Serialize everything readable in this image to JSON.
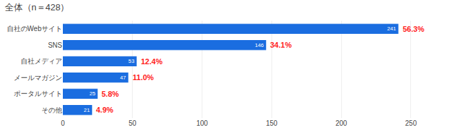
{
  "chart_data": {
    "type": "bar",
    "orientation": "horizontal",
    "title": "全体（n＝428）",
    "categories": [
      "自社のWebサイト",
      "SNS",
      "自社メディア",
      "メールマガジン",
      "ポータルサイト",
      "その他"
    ],
    "values": [
      241,
      146,
      53,
      47,
      25,
      21
    ],
    "color": "#1a6de0",
    "data_labels": true,
    "annotations": [
      {
        "text": "56.3%",
        "color": "#ff2020"
      },
      {
        "text": "34.1%",
        "color": "#ff2020"
      },
      {
        "text": "12.4%",
        "color": "#ff2020"
      },
      {
        "text": "11.0%",
        "color": "#ff2020"
      },
      {
        "text": "5.8%",
        "color": "#ff2020"
      },
      {
        "text": "4.9%",
        "color": "#ff2020"
      }
    ],
    "xlim": [
      0,
      260
    ],
    "xticks": [
      0,
      50,
      100,
      150,
      200,
      250
    ],
    "grid": true
  }
}
